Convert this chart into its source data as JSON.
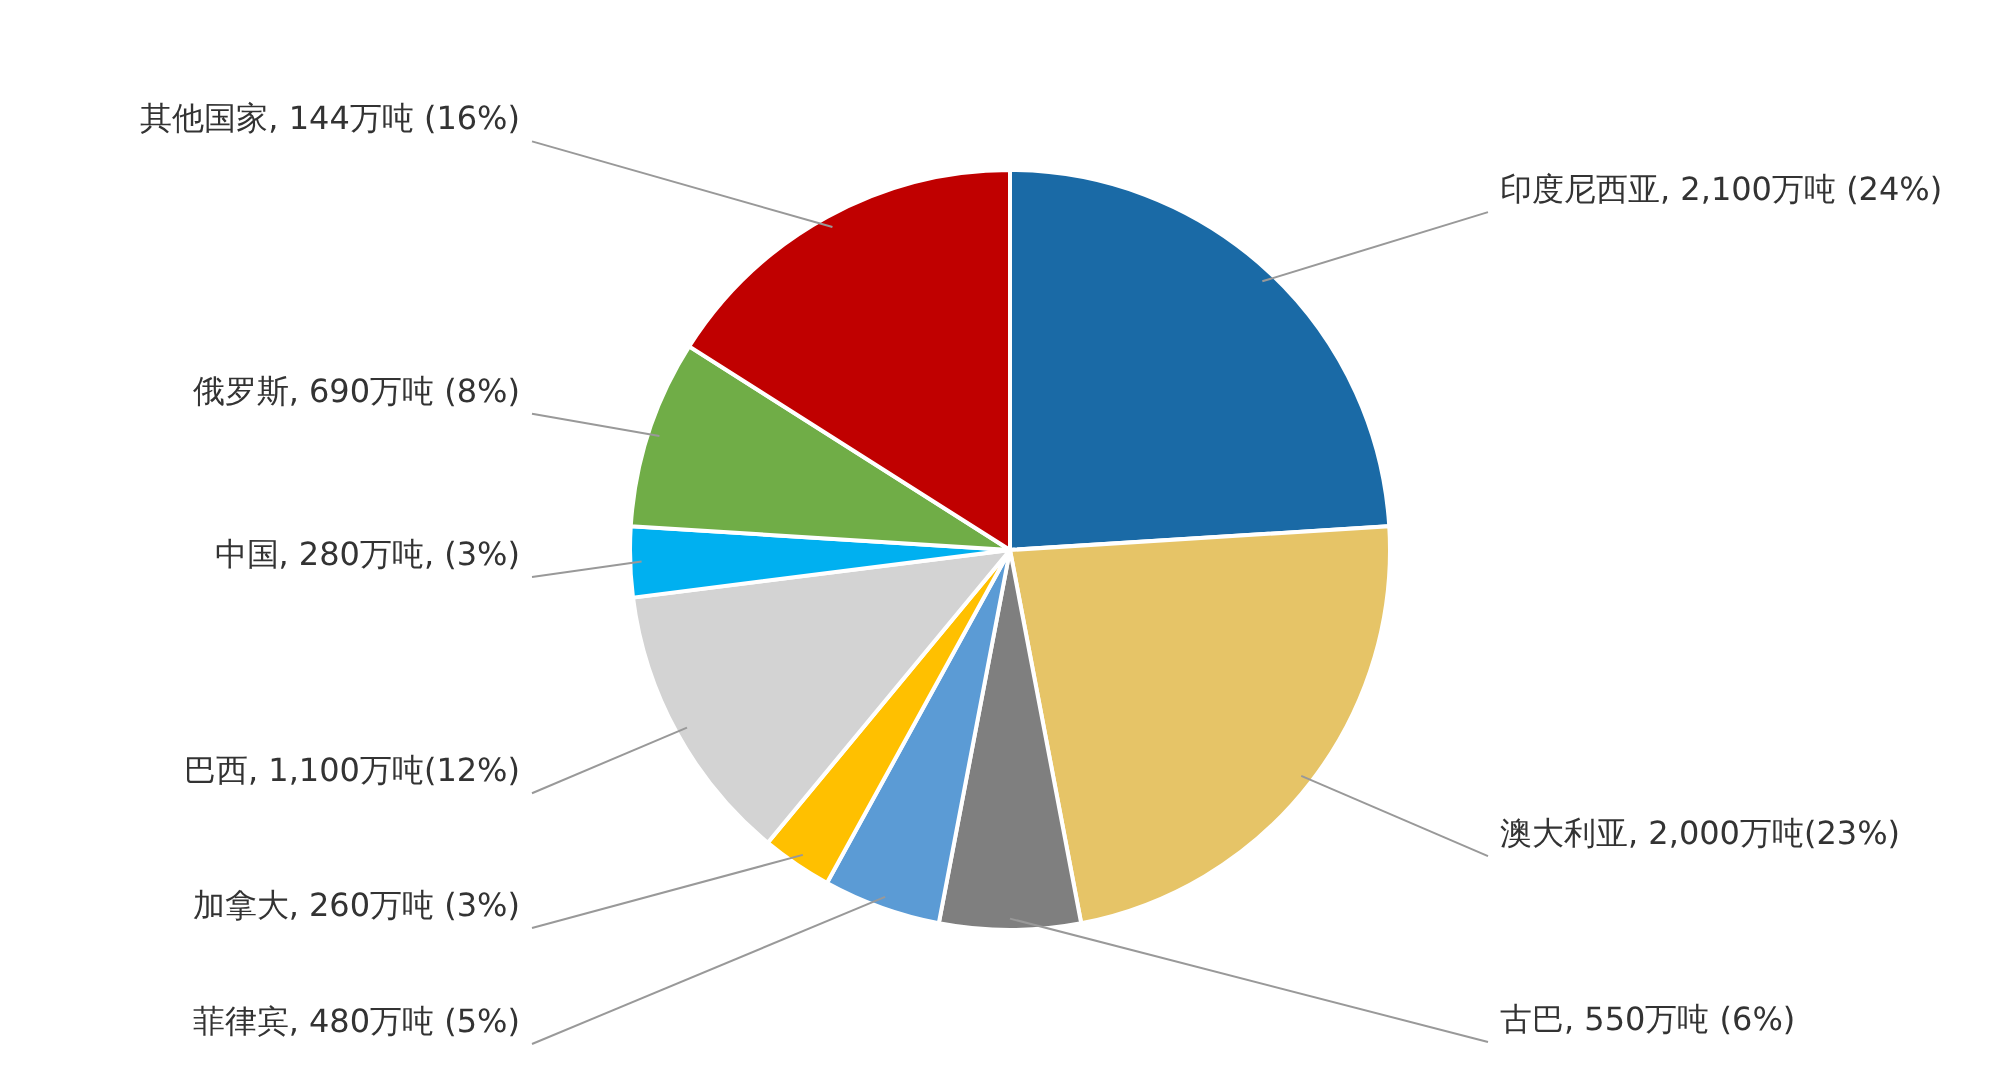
{
  "chart_data": {
    "type": "pie",
    "categories": [
      "印度尼西亚",
      "澳大利亚",
      "古巴",
      "菲律宾",
      "加拿大",
      "巴西",
      "中国",
      "俄罗斯",
      "其他国家"
    ],
    "values": [
      24,
      23,
      6,
      5,
      3,
      12,
      3,
      8,
      16
    ],
    "colors": [
      "#1a6aa6",
      "#e6c467",
      "#7f7f7f",
      "#5b9bd5",
      "#ffc000",
      "#d3d3d3",
      "#00b0f0",
      "#70ad47",
      "#c00000"
    ],
    "value_labels": [
      "2,100万吨 (24%)",
      "2,000万吨(23%)",
      "550万吨 (6%)",
      "480万吨 (5%)",
      "260万吨 (3%)",
      "1,100万吨(12%)",
      "280万吨, (3%)",
      "690万吨 (8%)",
      "144万吨 (16%)"
    ]
  }
}
